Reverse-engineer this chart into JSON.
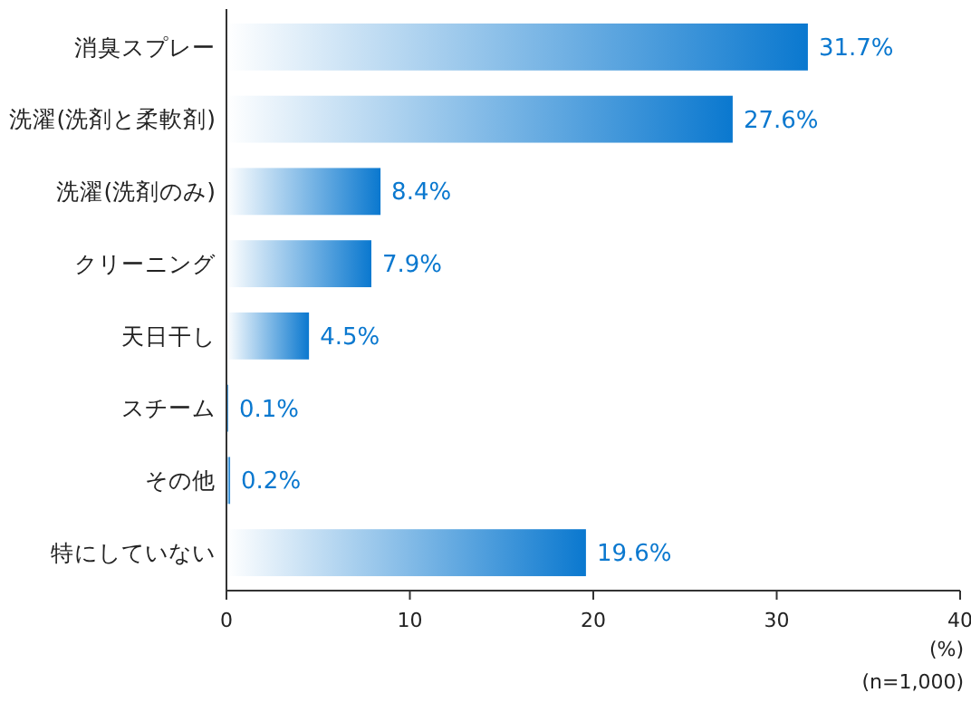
{
  "chart_data": {
    "type": "bar",
    "orientation": "horizontal",
    "categories": [
      "消臭スプレー",
      "洗濯(洗剤と柔軟剤)",
      "洗濯(洗剤のみ)",
      "クリーニング",
      "天日干し",
      "スチーム",
      "その他",
      "特にしていない"
    ],
    "values": [
      31.7,
      27.6,
      8.4,
      7.9,
      4.5,
      0.1,
      0.2,
      19.6
    ],
    "value_labels": [
      "31.7%",
      "27.6%",
      "8.4%",
      "7.9%",
      "4.5%",
      "0.1%",
      "0.2%",
      "19.6%"
    ],
    "color": "#0a78cf",
    "xlim": [
      0,
      40
    ],
    "xticks": [
      0,
      10,
      20,
      30,
      40
    ],
    "xlabel": "(%)",
    "annotations": [
      "(n=1,000)"
    ],
    "grid": false
  }
}
